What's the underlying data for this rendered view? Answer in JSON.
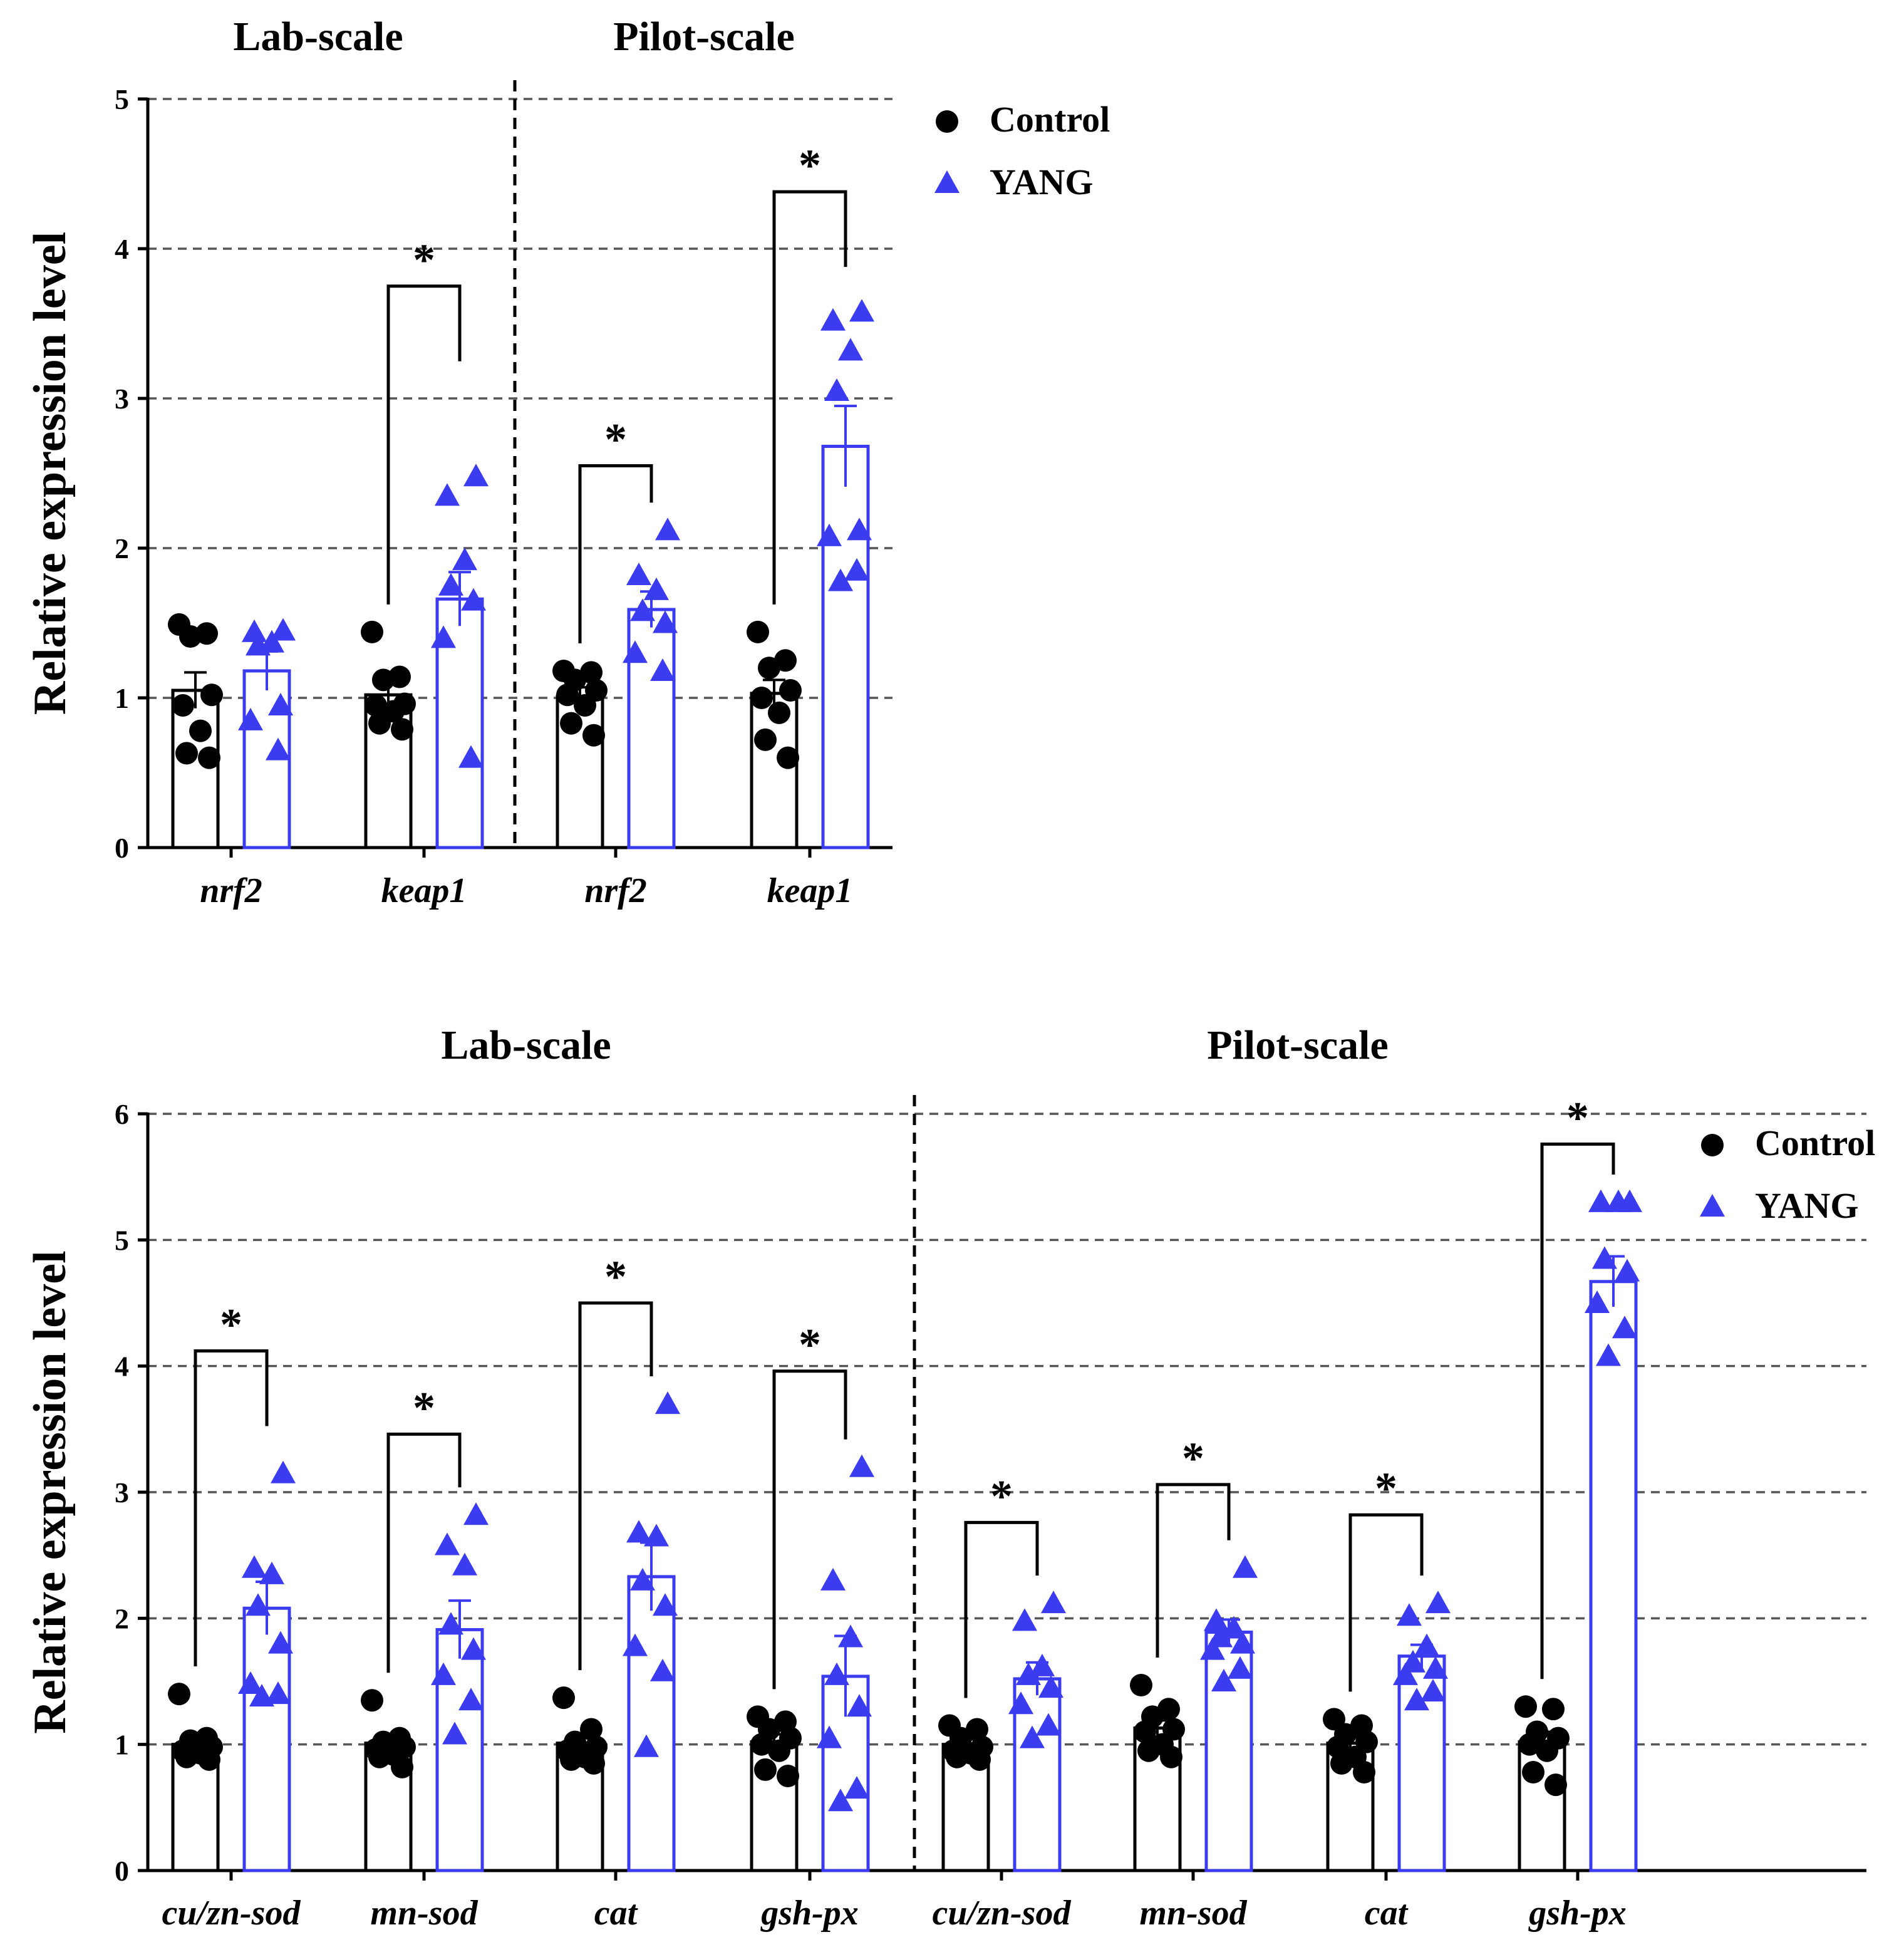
{
  "colors": {
    "control": "#000000",
    "yang": "#3b3bf0",
    "grid": "#555555"
  },
  "legend": {
    "control_label": "Control",
    "yang_label": "YANG"
  },
  "chart_data": [
    {
      "type": "bar",
      "panel": "top",
      "ylabel": "Relative expression level",
      "ylim": [
        0,
        5
      ],
      "yticks": [
        0,
        1,
        2,
        3,
        4,
        5
      ],
      "groups": [
        {
          "label": "Lab-scale",
          "genes": [
            "nrf2",
            "keap1"
          ]
        },
        {
          "label": "Pilot-scale",
          "genes": [
            "nrf2",
            "keap1"
          ]
        }
      ],
      "categories": [
        "nrf2",
        "keap1",
        "nrf2",
        "keap1"
      ],
      "series": [
        {
          "name": "Control",
          "values": [
            1.05,
            1.02,
            1.01,
            1.03
          ],
          "sem": [
            0.12,
            0.07,
            0.06,
            0.09
          ],
          "points": [
            [
              1.49,
              1.43,
              1.41,
              1.02,
              0.95,
              0.78,
              0.63,
              0.6
            ],
            [
              1.44,
              1.14,
              1.12,
              0.96,
              0.95,
              0.91,
              0.83,
              0.79
            ],
            [
              1.18,
              1.17,
              1.12,
              1.05,
              1.02,
              0.95,
              0.83,
              0.75
            ],
            [
              1.44,
              1.25,
              1.2,
              1.05,
              1.0,
              0.9,
              0.72,
              0.6
            ]
          ]
        },
        {
          "name": "YANG",
          "values": [
            1.18,
            1.66,
            1.59,
            2.68
          ],
          "sem": [
            0.13,
            0.18,
            0.12,
            0.27
          ],
          "points": [
            [
              1.45,
              1.44,
              1.37,
              1.35,
              0.95,
              0.85,
              0.65
            ],
            [
              2.48,
              2.35,
              1.92,
              1.75,
              1.65,
              1.4,
              0.6
            ],
            [
              2.12,
              1.82,
              1.72,
              1.58,
              1.5,
              1.3,
              1.18
            ],
            [
              3.58,
              3.52,
              3.32,
              3.05,
              2.12,
              2.08,
              1.85,
              1.78
            ]
          ]
        }
      ],
      "significance": [
        {
          "category_index": 1,
          "label": "*",
          "y": 3.75
        },
        {
          "category_index": 2,
          "label": "*",
          "y": 2.55
        },
        {
          "category_index": 3,
          "label": "*",
          "y": 4.38
        }
      ]
    },
    {
      "type": "bar",
      "panel": "bottom",
      "ylabel": "Relative expression level",
      "ylim": [
        0,
        6
      ],
      "yticks": [
        0,
        1,
        2,
        3,
        4,
        5,
        6
      ],
      "groups": [
        {
          "label": "Lab-scale",
          "genes": [
            "cu/zn-sod",
            "mn-sod",
            "cat",
            "gsh-px"
          ]
        },
        {
          "label": "Pilot-scale",
          "genes": [
            "cu/zn-sod",
            "mn-sod",
            "cat",
            "gsh-px"
          ]
        }
      ],
      "categories": [
        "cu/zn-sod",
        "mn-sod",
        "cat",
        "gsh-px",
        "cu/zn-sod",
        "mn-sod",
        "cat",
        "gsh-px"
      ],
      "series": [
        {
          "name": "Control",
          "values": [
            1.0,
            1.01,
            1.01,
            1.02,
            1.0,
            1.13,
            1.01,
            1.02
          ],
          "sem": [
            0.05,
            0.04,
            0.05,
            0.06,
            0.04,
            0.06,
            0.05,
            0.08
          ],
          "points": [
            [
              1.4,
              1.05,
              1.03,
              0.98,
              0.95,
              0.93,
              0.9,
              0.88
            ],
            [
              1.35,
              1.05,
              1.02,
              0.98,
              0.96,
              0.92,
              0.9,
              0.82
            ],
            [
              1.37,
              1.12,
              1.02,
              0.98,
              0.95,
              0.9,
              0.88,
              0.85
            ],
            [
              1.22,
              1.18,
              1.12,
              1.05,
              1.0,
              0.95,
              0.8,
              0.75
            ],
            [
              1.15,
              1.12,
              1.05,
              0.98,
              0.95,
              0.93,
              0.9,
              0.88
            ],
            [
              1.47,
              1.28,
              1.22,
              1.12,
              1.1,
              1.0,
              0.95,
              0.9
            ],
            [
              1.2,
              1.15,
              1.08,
              1.02,
              0.98,
              0.9,
              0.85,
              0.78
            ],
            [
              1.3,
              1.28,
              1.1,
              1.05,
              1.0,
              0.95,
              0.78,
              0.68
            ]
          ]
        },
        {
          "name": "YANG",
          "values": [
            2.08,
            1.91,
            2.33,
            1.54,
            1.52,
            1.89,
            1.7,
            4.67
          ],
          "sem": [
            0.21,
            0.23,
            0.27,
            0.32,
            0.13,
            0.1,
            0.09,
            0.2
          ],
          "points": [
            [
              3.15,
              2.4,
              2.35,
              2.1,
              1.8,
              1.48,
              1.4,
              1.38
            ],
            [
              2.82,
              2.58,
              2.42,
              1.95,
              1.75,
              1.55,
              1.35,
              1.08
            ],
            [
              3.7,
              2.68,
              2.65,
              2.3,
              2.1,
              1.78,
              1.58,
              0.98
            ],
            [
              3.2,
              2.3,
              1.85,
              1.55,
              1.3,
              1.05,
              0.65,
              0.55
            ],
            [
              2.12,
              1.98,
              1.62,
              1.55,
              1.45,
              1.32,
              1.15,
              1.05
            ],
            [
              2.4,
              1.98,
              1.92,
              1.85,
              1.8,
              1.75,
              1.6,
              1.5
            ],
            [
              2.12,
              2.02,
              1.78,
              1.65,
              1.6,
              1.55,
              1.42,
              1.35
            ],
            [
              5.3,
              5.3,
              5.3,
              4.85,
              4.75,
              4.5,
              4.3,
              4.08
            ]
          ]
        }
      ],
      "significance": [
        {
          "category_index": 0,
          "label": "*",
          "y": 4.12
        },
        {
          "category_index": 1,
          "label": "*",
          "y": 3.46
        },
        {
          "category_index": 2,
          "label": "*",
          "y": 4.5
        },
        {
          "category_index": 3,
          "label": "*",
          "y": 3.96
        },
        {
          "category_index": 4,
          "label": "*",
          "y": 2.76
        },
        {
          "category_index": 5,
          "label": "*",
          "y": 3.06
        },
        {
          "category_index": 6,
          "label": "*",
          "y": 2.82
        },
        {
          "category_index": 7,
          "label": "*",
          "y": 5.76
        }
      ]
    }
  ]
}
